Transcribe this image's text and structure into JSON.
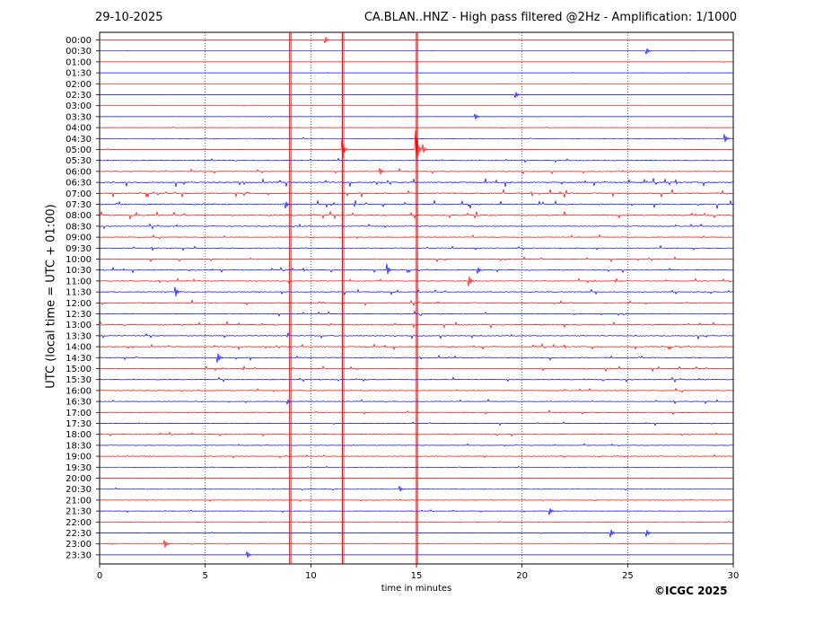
{
  "header": {
    "date": "29-10-2025",
    "title": "CA.BLAN..HNZ - High pass filtered @2Hz - Amplification: 1/1000"
  },
  "footer": {
    "copyright": "©ICGC 2025"
  },
  "colors": {
    "red": "#ff0000",
    "blue": "#0000ff",
    "grid": "#000000"
  },
  "chart_data": {
    "type": "line",
    "title": "CA.BLAN..HNZ - High pass filtered @2Hz - Amplification: 1/1000",
    "xlabel": "time in minutes",
    "ylabel": "UTC (local time = UTC + 01:00)",
    "xlim": [
      0,
      30
    ],
    "xticks": [
      "0",
      "5",
      "10",
      "15",
      "20",
      "25",
      "30"
    ],
    "grid": "vertical dotted lines at 5, 10, 15, 20, 25 minutes",
    "row_labels": [
      "00:00",
      "00:30",
      "01:00",
      "01:30",
      "02:00",
      "02:30",
      "03:00",
      "03:30",
      "04:00",
      "04:30",
      "05:00",
      "05:30",
      "06:00",
      "06:30",
      "07:00",
      "07:30",
      "08:00",
      "08:30",
      "09:00",
      "09:30",
      "10:00",
      "10:30",
      "11:00",
      "11:30",
      "12:00",
      "12:30",
      "13:00",
      "13:30",
      "14:00",
      "14:30",
      "15:00",
      "15:30",
      "16:00",
      "16:30",
      "17:00",
      "17:30",
      "18:00",
      "18:30",
      "19:00",
      "19:30",
      "20:00",
      "20:30",
      "21:00",
      "21:30",
      "22:00",
      "22:30",
      "23:00",
      "23:30"
    ],
    "row_colors": "alternating red (full hour) / blue (half hour)",
    "noise_level_by_row": [
      0.1,
      0.1,
      0.08,
      0.08,
      0.1,
      0.1,
      0.1,
      0.12,
      0.15,
      0.25,
      0.3,
      0.45,
      0.6,
      1.0,
      1.0,
      1.0,
      0.9,
      0.6,
      0.55,
      0.55,
      0.6,
      0.6,
      0.6,
      0.6,
      0.6,
      0.65,
      0.7,
      0.7,
      0.65,
      0.6,
      0.6,
      0.55,
      0.55,
      0.5,
      0.5,
      0.45,
      0.45,
      0.4,
      0.35,
      0.3,
      0.25,
      0.3,
      0.35,
      0.3,
      0.25,
      0.2,
      0.15,
      0.1
    ],
    "events": [
      {
        "row": 2,
        "minute": 9.0,
        "type": "gap-line"
      },
      {
        "minute": 9.0,
        "from_row": 0,
        "to_row": 47,
        "type": "vertical-line"
      },
      {
        "minute": 11.5,
        "from_row": 0,
        "to_row": 47,
        "type": "vertical-line"
      },
      {
        "minute": 15.0,
        "from_row": 0,
        "to_row": 47,
        "type": "vertical-line"
      },
      {
        "row": 0,
        "minute": 10.7,
        "amplitude": 0.6
      },
      {
        "row": 1,
        "minute": 25.9,
        "amplitude": 0.6
      },
      {
        "row": 5,
        "minute": 19.7,
        "amplitude": 0.6
      },
      {
        "row": 7,
        "minute": 17.8,
        "amplitude": 0.5
      },
      {
        "row": 9,
        "minute": 29.6,
        "amplitude": 0.8
      },
      {
        "row": 10,
        "minute": 11.5,
        "amplitude": 2.0
      },
      {
        "row": 10,
        "minute": 15.0,
        "amplitude": 3.5
      },
      {
        "row": 10,
        "minute": 15.3,
        "amplitude": 1.0
      },
      {
        "row": 12,
        "minute": 13.3,
        "amplitude": 0.6
      },
      {
        "row": 15,
        "minute": 8.8,
        "amplitude": 0.8
      },
      {
        "row": 21,
        "minute": 13.6,
        "amplitude": 1.2
      },
      {
        "row": 21,
        "minute": 17.9,
        "amplitude": 0.7
      },
      {
        "row": 22,
        "minute": 17.5,
        "amplitude": 1.0
      },
      {
        "row": 23,
        "minute": 3.6,
        "amplitude": 0.9
      },
      {
        "row": 29,
        "minute": 5.6,
        "amplitude": 0.9
      },
      {
        "row": 33,
        "minute": 8.9,
        "amplitude": 0.5
      },
      {
        "row": 41,
        "minute": 14.2,
        "amplitude": 0.6
      },
      {
        "row": 43,
        "minute": 21.3,
        "amplitude": 0.7
      },
      {
        "row": 45,
        "minute": 24.2,
        "amplitude": 0.8
      },
      {
        "row": 45,
        "minute": 25.9,
        "amplitude": 0.7
      },
      {
        "row": 46,
        "minute": 3.1,
        "amplitude": 0.7
      },
      {
        "row": 47,
        "minute": 7.0,
        "amplitude": 0.6
      }
    ]
  }
}
